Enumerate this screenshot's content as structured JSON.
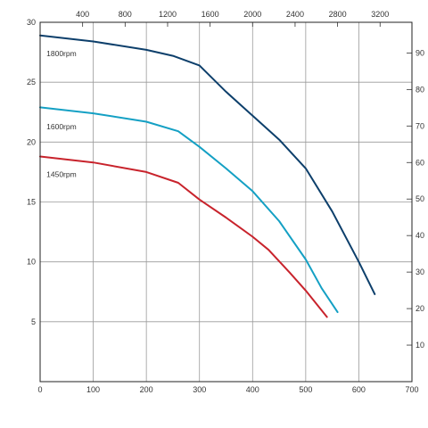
{
  "chart_data": {
    "type": "line",
    "title": "",
    "xlabel": "",
    "ylabel": "",
    "grid": true,
    "x_axis_bottom": {
      "ticks": [
        0,
        100,
        200,
        300,
        400,
        500,
        600,
        700
      ],
      "tick_labels": [
        "0",
        "100",
        "200",
        "300",
        "400",
        "500",
        "600",
        "700"
      ],
      "range": [
        0,
        700
      ]
    },
    "x_axis_top": {
      "ticks": [
        400,
        800,
        1200,
        1600,
        2000,
        2400,
        2800,
        3200
      ],
      "tick_labels": [
        "400",
        "800",
        "1200",
        "1600",
        "2000",
        "2400",
        "2800",
        "3200"
      ],
      "range": [
        0,
        3500
      ]
    },
    "y_axis_left": {
      "ticks": [
        5,
        10,
        15,
        20,
        25,
        30
      ],
      "tick_labels": [
        "5",
        "10",
        "15",
        "20",
        "25",
        "30"
      ],
      "range": [
        0,
        30
      ]
    },
    "y_axis_right": {
      "ticks": [
        10,
        20,
        30,
        40,
        50,
        60,
        70,
        80,
        90
      ],
      "tick_labels": [
        "10",
        "20",
        "30",
        "40",
        "50",
        "60",
        "70",
        "80",
        "90"
      ],
      "range": [
        0,
        98.4
      ]
    },
    "series": [
      {
        "name": "1800rpm",
        "color": "#0d3f6b",
        "label_at": [
          12,
          27.4
        ],
        "points": [
          [
            0,
            28.9
          ],
          [
            100,
            28.4
          ],
          [
            200,
            27.7
          ],
          [
            250,
            27.2
          ],
          [
            300,
            26.4
          ],
          [
            350,
            24.2
          ],
          [
            400,
            22.2
          ],
          [
            450,
            20.2
          ],
          [
            500,
            17.8
          ],
          [
            550,
            14.2
          ],
          [
            600,
            10.0
          ],
          [
            630,
            7.3
          ]
        ]
      },
      {
        "name": "1600rpm",
        "color": "#14a0c4",
        "label_at": [
          12,
          21.3
        ],
        "points": [
          [
            0,
            22.9
          ],
          [
            100,
            22.4
          ],
          [
            200,
            21.7
          ],
          [
            260,
            20.9
          ],
          [
            300,
            19.6
          ],
          [
            350,
            17.8
          ],
          [
            400,
            15.9
          ],
          [
            450,
            13.4
          ],
          [
            500,
            10.2
          ],
          [
            530,
            7.8
          ],
          [
            560,
            5.8
          ]
        ]
      },
      {
        "name": "1450rpm",
        "color": "#c8232c",
        "label_at": [
          12,
          17.3
        ],
        "points": [
          [
            0,
            18.8
          ],
          [
            100,
            18.3
          ],
          [
            200,
            17.5
          ],
          [
            260,
            16.6
          ],
          [
            300,
            15.2
          ],
          [
            350,
            13.7
          ],
          [
            400,
            12.1
          ],
          [
            430,
            11.0
          ],
          [
            470,
            9.1
          ],
          [
            500,
            7.6
          ],
          [
            540,
            5.4
          ]
        ]
      }
    ]
  }
}
